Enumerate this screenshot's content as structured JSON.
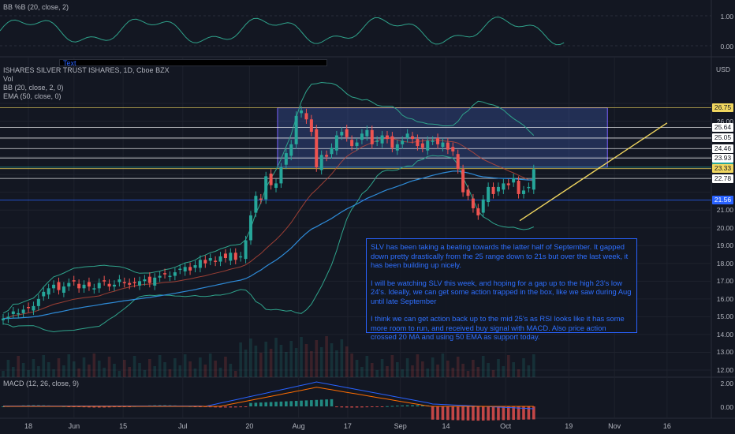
{
  "indicators": {
    "bbpct": "BB %B (20, close, 2)",
    "symbol": "ISHARES SILVER TRUST ISHARES, 1D, Cboe BZX",
    "vol": "Vol",
    "bb": "BB (20, close, 2, 0)",
    "ema": "EMA (50, close, 0)",
    "macd": "MACD (12, 26, close, 9)"
  },
  "text_tool_label": "Text",
  "currency": "USD",
  "bbpct_axis": [
    "1.00",
    "0.00"
  ],
  "macd_axis": [
    "2.00",
    "0.00"
  ],
  "price_axis": [
    "26.00",
    "21.00",
    "20.00",
    "19.00",
    "18.00",
    "17.00",
    "16.00",
    "15.00",
    "14.00",
    "13.00",
    "12.00"
  ],
  "level_tags": [
    {
      "value": "26.75",
      "color": "#f0d65f"
    },
    {
      "value": "25.64",
      "color": "#ffffff"
    },
    {
      "value": "25.05",
      "color": "#ffffff"
    },
    {
      "value": "24.46",
      "color": "#ffffff"
    },
    {
      "value": "23.93",
      "color": "#ffffff"
    },
    {
      "value": "23.41",
      "color": "#26a69a"
    },
    {
      "value": "23.33",
      "color": "#f0d65f"
    },
    {
      "value": "22.78",
      "color": "#ffffff"
    },
    {
      "value": "21.56",
      "color": "#2962ff"
    }
  ],
  "x_axis": [
    "18",
    "Jun",
    "15",
    "Jul",
    "20",
    "Aug",
    "17",
    "Sep",
    "14",
    "Oct",
    "19",
    "Nov",
    "16"
  ],
  "note": {
    "p1": "SLV has been taking a beating towards the latter half of September. It gapped down pretty drastically from the 25 range down to 21s but over the last week, it has been building up nicely.",
    "p2": "I will be watching SLV this week, and hoping for a gap up to the high 23's low 24's. Ideally, we can get some action trapped in the box, like we saw during Aug until late September",
    "p3": "I think we can get action back up to the mid 25's as RSI looks like it has some more room to run, and received buy signal with MACD. Also price action crossed 20 MA and using 50 EMA as support today."
  },
  "colors": {
    "up": "#26a69a",
    "down": "#ef5350",
    "box": "#4a6fd6",
    "bb": "#2fa38b",
    "ema": "#2e8bd8",
    "bb_basis": "#c04a3a",
    "trend": "#f0d65f"
  },
  "chart_data": {
    "type": "candlestick",
    "price_range": [
      11.6,
      27.4
    ],
    "box": {
      "x_start": "Jul 28",
      "x_end": "Oct 30",
      "price_low": 23.41,
      "price_high": 26.75
    },
    "trendline": {
      "from": {
        "date": "Oct 5",
        "price": 20.4
      },
      "to": {
        "date": "Nov 16",
        "price": 25.9
      }
    },
    "closes": [
      14.9,
      15.0,
      15.3,
      15.2,
      15.4,
      15.5,
      15.6,
      16.0,
      16.4,
      16.6,
      16.8,
      16.5,
      16.7,
      16.9,
      17.0,
      16.6,
      16.8,
      16.7,
      16.6,
      16.9,
      17.0,
      16.7,
      16.8,
      17.1,
      16.9,
      16.8,
      16.9,
      17.0,
      17.1,
      16.9,
      17.2,
      17.3,
      17.4,
      17.3,
      17.5,
      17.7,
      17.8,
      17.6,
      17.9,
      18.2,
      18.0,
      18.3,
      18.1,
      18.4,
      18.3,
      18.6,
      18.2,
      18.4,
      19.3,
      20.7,
      21.8,
      21.6,
      22.9,
      22.4,
      22.5,
      23.4,
      24.2,
      24.7,
      26.3,
      26.6,
      26.1,
      25.4,
      23.4,
      24.1,
      24.0,
      24.5,
      25.2,
      25.4,
      25.1,
      24.6,
      24.8,
      25.3,
      25.5,
      24.7,
      24.9,
      25.2,
      25.0,
      24.5,
      24.7,
      24.9,
      25.3,
      25.0,
      24.6,
      24.5,
      24.9,
      24.9,
      24.7,
      24.8,
      24.4,
      24.3,
      23.3,
      22.0,
      21.8,
      21.1,
      20.7,
      21.6,
      22.3,
      21.9,
      22.3,
      22.5,
      22.4,
      22.8,
      21.9,
      22.1,
      22.3,
      23.3
    ],
    "macd_hist_visible": true,
    "bbpct_visible": true
  }
}
